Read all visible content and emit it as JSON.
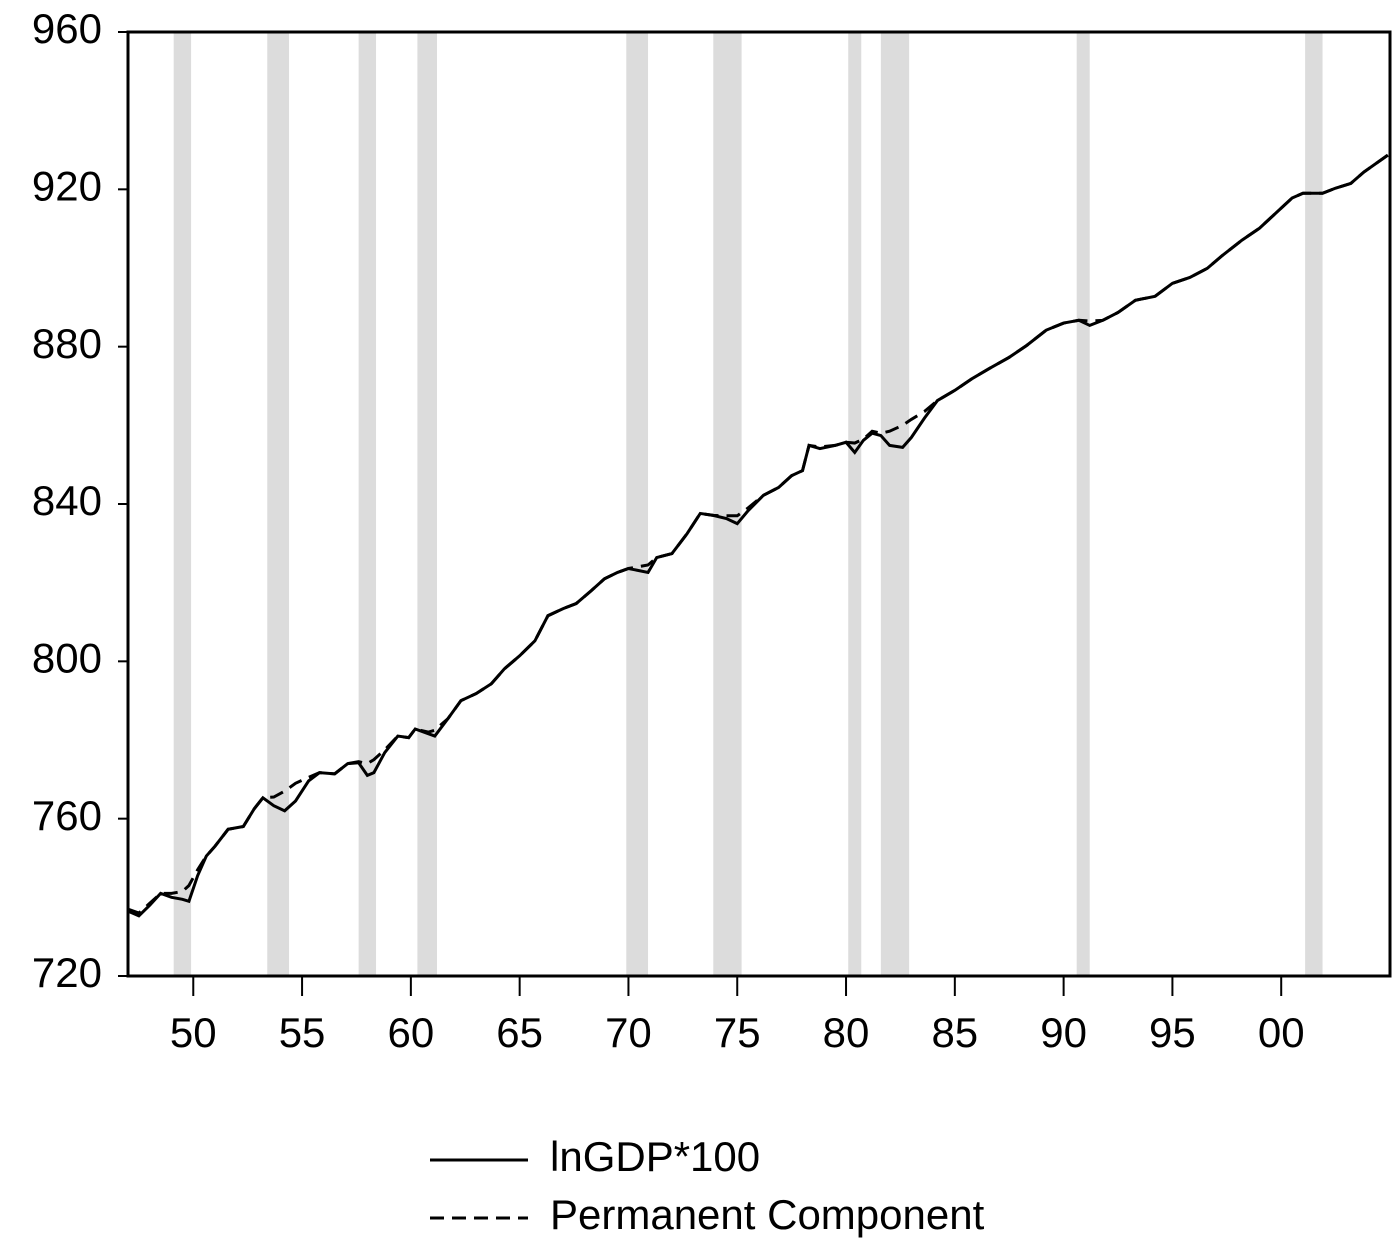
{
  "chart_data": {
    "type": "line",
    "x": [
      1947.0,
      1947.5,
      1948.0,
      1948.5,
      1949.0,
      1949.5,
      1949.8,
      1950.2,
      1950.6,
      1951.0,
      1951.6,
      1952.3,
      1952.8,
      1953.2,
      1953.7,
      1954.2,
      1954.7,
      1955.3,
      1955.8,
      1956.5,
      1957.1,
      1957.6,
      1958.0,
      1958.3,
      1958.8,
      1959.4,
      1959.9,
      1960.2,
      1960.8,
      1961.1,
      1961.7,
      1962.3,
      1963.0,
      1963.7,
      1964.3,
      1965.0,
      1965.7,
      1966.3,
      1967.0,
      1967.6,
      1968.3,
      1968.9,
      1969.5,
      1970.0,
      1970.9,
      1971.3,
      1972.0,
      1972.7,
      1973.3,
      1973.9,
      1974.5,
      1975.0,
      1975.5,
      1976.2,
      1976.9,
      1977.5,
      1978.0,
      1978.3,
      1978.8,
      1979.5,
      1980.0,
      1980.4,
      1980.8,
      1981.2,
      1981.6,
      1982.0,
      1982.6,
      1983.0,
      1983.6,
      1984.2,
      1985.0,
      1985.8,
      1986.6,
      1987.5,
      1988.3,
      1989.2,
      1990.0,
      1990.7,
      1991.2,
      1991.8,
      1992.5,
      1993.3,
      1994.2,
      1995.0,
      1995.8,
      1996.6,
      1997.3,
      1998.2,
      1999.0,
      1999.8,
      2000.5,
      2001.0,
      2001.5,
      2001.9,
      2002.5,
      2003.2,
      2003.8,
      2004.9
    ],
    "series": [
      {
        "name": "lnGDP*100",
        "color": "#000000",
        "line_style": "solid",
        "values": [
          736.5,
          735.3,
          738,
          741,
          740,
          739.5,
          739,
          745.5,
          750.5,
          753,
          757.3,
          758,
          762.5,
          765.3,
          763.3,
          762,
          764.5,
          769.6,
          771.7,
          771.4,
          774,
          774.2,
          771,
          771.7,
          776.8,
          781,
          780.6,
          782.8,
          781.6,
          781,
          785.4,
          790,
          791.8,
          794.3,
          798.1,
          801.4,
          805.2,
          811.6,
          813.4,
          814.7,
          818,
          821,
          822.6,
          823.6,
          822.6,
          826.4,
          827.4,
          832.5,
          837.6,
          837.1,
          836.3,
          835,
          838.3,
          842.2,
          844.2,
          847.2,
          848.5,
          854.9,
          854.1,
          854.9,
          855.7,
          853.1,
          856.2,
          858,
          857.4,
          854.9,
          854.4,
          856.9,
          861.8,
          866.3,
          868.9,
          871.9,
          874.5,
          877.3,
          880.3,
          884.2,
          886,
          886.7,
          885.4,
          886.7,
          888.7,
          891.8,
          892.8,
          896.1,
          897.6,
          899.9,
          903.2,
          907.1,
          910.1,
          914.2,
          917.8,
          919,
          919,
          919,
          920.3,
          921.5,
          924.4,
          928.7
        ]
      },
      {
        "name": "Permanent Component",
        "color": "#000000",
        "line_style": "dashed",
        "values": [
          737,
          736,
          738.5,
          741,
          741,
          741.5,
          743,
          747,
          750.5,
          753,
          757.3,
          758,
          762.5,
          765.3,
          765.5,
          767,
          769,
          770.5,
          771.7,
          771.4,
          774,
          774.5,
          774,
          775,
          777.5,
          781,
          780.6,
          782.8,
          782,
          782.5,
          785.4,
          790,
          791.8,
          794.3,
          798.1,
          801.4,
          805.2,
          811.6,
          813.4,
          814.7,
          818,
          821,
          822.6,
          823.6,
          824.5,
          826.4,
          827.4,
          832.5,
          837.6,
          837.1,
          837,
          837,
          839,
          842.2,
          844.2,
          847.2,
          848.5,
          854.9,
          854.5,
          854.9,
          855.7,
          855.5,
          856.5,
          858.5,
          858,
          858.5,
          860,
          861.5,
          863.5,
          866.3,
          868.9,
          871.9,
          874.5,
          877.3,
          880.3,
          884.2,
          886,
          886.7,
          886.5,
          886.7,
          888.7,
          891.8,
          892.8,
          896.1,
          897.6,
          899.9,
          903.2,
          907.1,
          910.1,
          914.2,
          917.8,
          919,
          919,
          919,
          920.3,
          921.5,
          924.4,
          928.7
        ]
      }
    ],
    "shading": [
      [
        1949.1,
        1949.9
      ],
      [
        1953.4,
        1954.4
      ],
      [
        1957.6,
        1958.4
      ],
      [
        1960.3,
        1961.2
      ],
      [
        1969.9,
        1970.9
      ],
      [
        1973.9,
        1975.2
      ],
      [
        1980.1,
        1980.7
      ],
      [
        1981.6,
        1982.9
      ],
      [
        1990.6,
        1991.2
      ],
      [
        2001.1,
        2001.9
      ]
    ],
    "shading_color": "#dcdcdc",
    "xlim": [
      1947,
      2005
    ],
    "xticks": [
      {
        "value": 1950,
        "label": "50"
      },
      {
        "value": 1955,
        "label": "55"
      },
      {
        "value": 1960,
        "label": "60"
      },
      {
        "value": 1965,
        "label": "65"
      },
      {
        "value": 1970,
        "label": "70"
      },
      {
        "value": 1975,
        "label": "75"
      },
      {
        "value": 1980,
        "label": "80"
      },
      {
        "value": 1985,
        "label": "85"
      },
      {
        "value": 1990,
        "label": "90"
      },
      {
        "value": 1995,
        "label": "95"
      },
      {
        "value": 2000,
        "label": "00"
      }
    ],
    "ylim": [
      720,
      960
    ],
    "yticks": [
      720,
      760,
      800,
      840,
      880,
      920,
      960
    ]
  }
}
